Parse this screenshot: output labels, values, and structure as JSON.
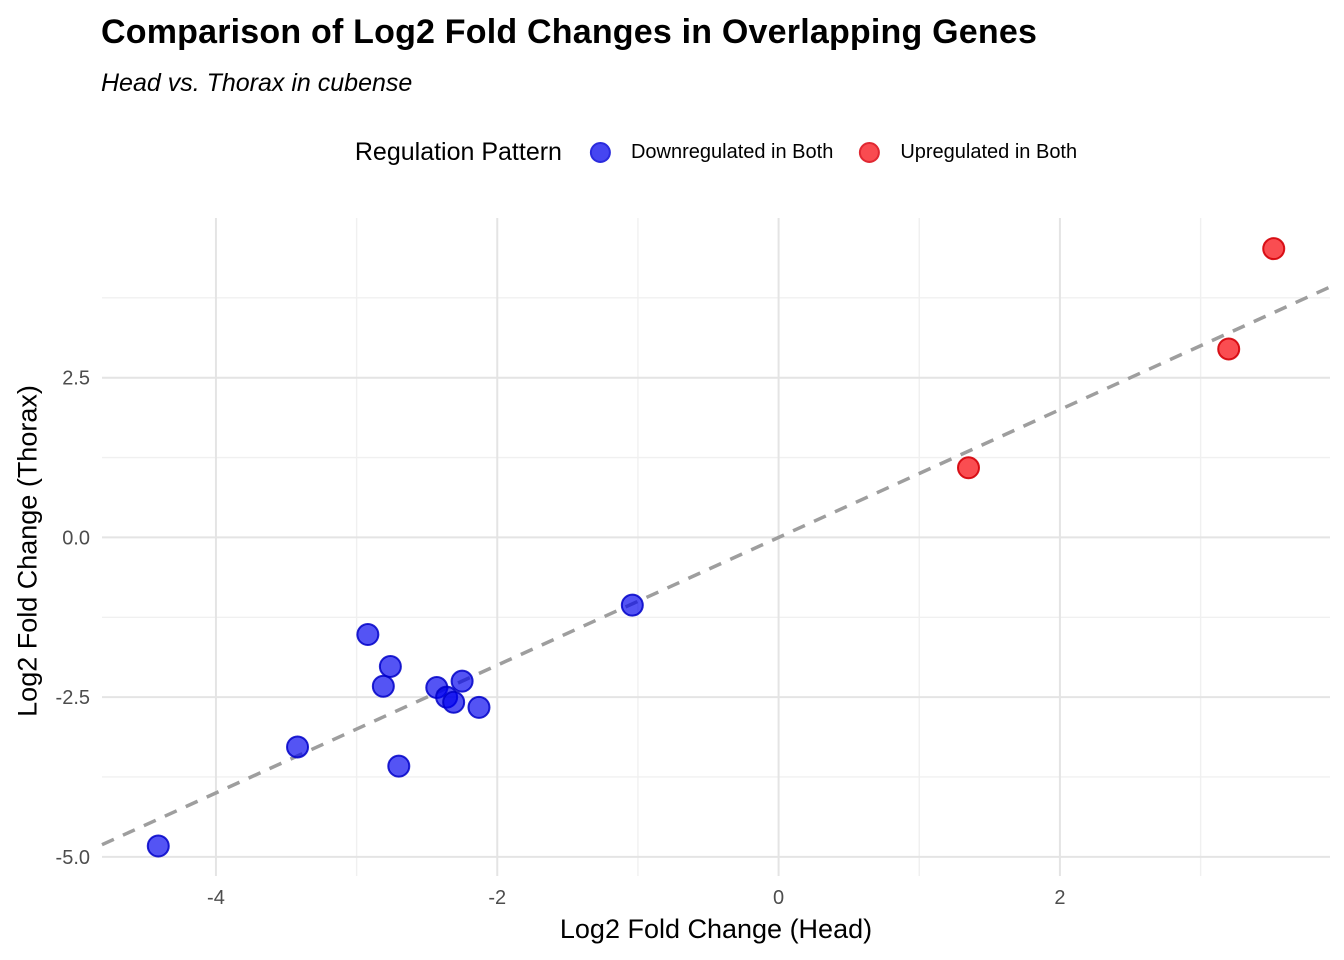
{
  "title": "Comparison of Log2 Fold Changes in Overlapping Genes",
  "subtitle": "Head vs. Thorax in cubense",
  "legend": {
    "title": "Regulation Pattern",
    "items": [
      {
        "label": "Downregulated in Both",
        "swatch_fill": "#4646F1",
        "swatch_border": "#2B2BDD"
      },
      {
        "label": "Upregulated in Both",
        "swatch_fill": "#F94B50",
        "swatch_border": "#E02832"
      }
    ]
  },
  "chart_data": {
    "type": "scatter",
    "title": "Comparison of Log2 Fold Changes in Overlapping Genes",
    "subtitle": "Head vs. Thorax in cubense",
    "xlabel": "Log2 Fold Change (Head)",
    "ylabel": "Log2 Fold Change (Thorax)",
    "xlim": [
      -4.81,
      3.92
    ],
    "ylim": [
      -5.3,
      5.0
    ],
    "grid": true,
    "legend_position": "top",
    "x_ticks": [
      {
        "v": -4,
        "label": "-4"
      },
      {
        "v": -2,
        "label": "-2"
      },
      {
        "v": 0,
        "label": "0"
      },
      {
        "v": 2,
        "label": "2"
      }
    ],
    "y_ticks": [
      {
        "v": -5.0,
        "label": "-5.0"
      },
      {
        "v": -2.5,
        "label": "-2.5"
      },
      {
        "v": 0.0,
        "label": "0.0"
      },
      {
        "v": 2.5,
        "label": "2.5"
      }
    ],
    "x_minor_ticks": [
      -3,
      -1,
      1,
      3
    ],
    "y_minor_ticks": [
      -3.75,
      -1.25,
      1.25,
      3.75
    ],
    "reference_line": {
      "kind": "identity",
      "slope": 1,
      "intercept": 0,
      "style": "dashed",
      "color": "#9E9E9E"
    },
    "series": [
      {
        "name": "Downregulated in Both",
        "fill": "#0000EE",
        "fill_opacity": 0.67,
        "stroke": "#0000C8",
        "stroke_opacity": 0.85,
        "points": [
          [
            -4.41,
            -4.83
          ],
          [
            -3.42,
            -3.28
          ],
          [
            -2.92,
            -1.52
          ],
          [
            -2.81,
            -2.33
          ],
          [
            -2.76,
            -2.02
          ],
          [
            -2.7,
            -3.58
          ],
          [
            -2.43,
            -2.35
          ],
          [
            -2.36,
            -2.5
          ],
          [
            -2.31,
            -2.58
          ],
          [
            -2.25,
            -2.25
          ],
          [
            -2.13,
            -2.66
          ],
          [
            -1.04,
            -1.06
          ]
        ]
      },
      {
        "name": "Upregulated in Both",
        "fill": "#F8080E",
        "fill_opacity": 0.72,
        "stroke": "#D40008",
        "stroke_opacity": 0.9,
        "points": [
          [
            1.35,
            1.09
          ],
          [
            3.2,
            2.95
          ],
          [
            3.52,
            4.52
          ]
        ]
      }
    ],
    "style": {
      "grid_major": "#E4E4E4",
      "grid_minor": "#F0F0F0",
      "tick_text": "#4D4D4D",
      "point_radius": 10.5
    }
  }
}
